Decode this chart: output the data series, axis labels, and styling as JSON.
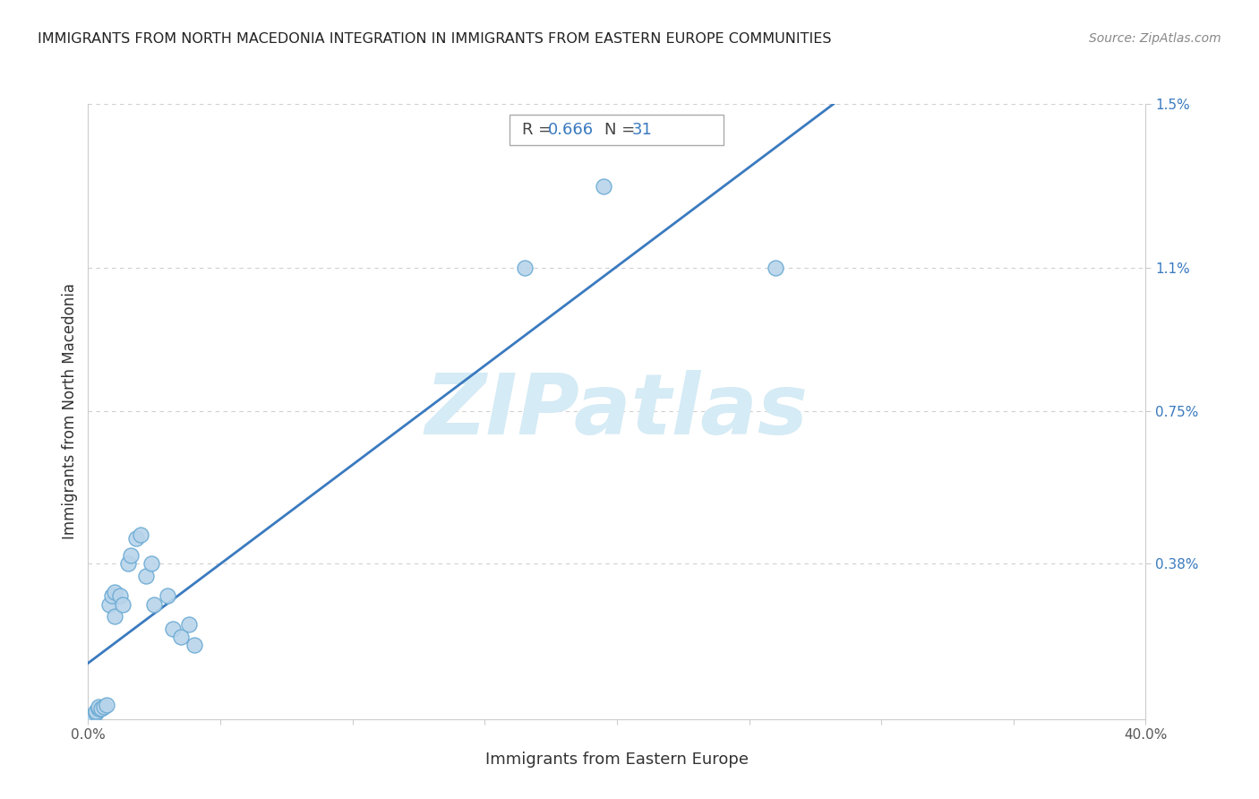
{
  "title": "IMMIGRANTS FROM NORTH MACEDONIA INTEGRATION IN IMMIGRANTS FROM EASTERN EUROPE COMMUNITIES",
  "source": "Source: ZipAtlas.com",
  "xlabel": "Immigrants from Eastern Europe",
  "ylabel": "Immigrants from North Macedonia",
  "R": 0.666,
  "N": 31,
  "x_min": 0.0,
  "x_max": 0.4,
  "y_min": 0.0,
  "y_max": 0.015,
  "x_tick_positions": [
    0.0,
    0.05,
    0.1,
    0.15,
    0.2,
    0.25,
    0.3,
    0.35,
    0.4
  ],
  "x_tick_labels": [
    "0.0%",
    "",
    "",
    "",
    "",
    "",
    "",
    "",
    "40.0%"
  ],
  "y_ticks": [
    0.0038,
    0.0075,
    0.011,
    0.015
  ],
  "y_tick_labels": [
    "0.38%",
    "0.75%",
    "1.1%",
    "1.5%"
  ],
  "scatter_x": [
    0.001,
    0.002,
    0.002,
    0.003,
    0.003,
    0.004,
    0.004,
    0.005,
    0.006,
    0.007,
    0.008,
    0.009,
    0.01,
    0.01,
    0.012,
    0.013,
    0.015,
    0.016,
    0.018,
    0.02,
    0.022,
    0.024,
    0.025,
    0.03,
    0.032,
    0.035,
    0.038,
    0.04,
    0.165,
    0.195,
    0.26
  ],
  "scatter_y": [
    5e-05,
    0.0001,
    8e-05,
    0.00015,
    0.0002,
    0.00025,
    0.0003,
    0.00025,
    0.0003,
    0.00035,
    0.0028,
    0.003,
    0.0025,
    0.0031,
    0.003,
    0.0028,
    0.0038,
    0.004,
    0.0044,
    0.0045,
    0.0035,
    0.0038,
    0.0028,
    0.003,
    0.0022,
    0.002,
    0.0023,
    0.0018,
    0.011,
    0.013,
    0.011
  ],
  "dot_facecolor": "#b8d4ea",
  "dot_edgecolor": "#6aaad4",
  "dot_size": 150,
  "line_color": "#3a7abf",
  "line_width": 2.0,
  "watermark_text": "ZIPatlas",
  "watermark_color": "#d5ebf5",
  "watermark_fontsize": 68,
  "grid_color": "#d0d0d0",
  "grid_style": "--",
  "background_color": "#ffffff",
  "title_color": "#222222",
  "title_fontsize": 11.5,
  "source_color": "#888888",
  "source_fontsize": 10,
  "xlabel_fontsize": 13,
  "ylabel_fontsize": 12,
  "tick_fontsize": 11,
  "rn_box_text_color": "#444444",
  "rn_val_color": "#3a7abf",
  "rn_fontsize": 13
}
